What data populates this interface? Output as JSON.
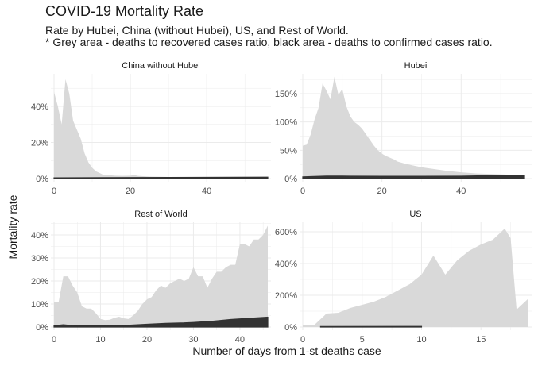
{
  "header": {
    "title": "COVID-19 Mortality Rate",
    "subtitle_line1": "Rate by Hubei, China (without Hubei), US, and Rest of World.",
    "subtitle_line2": "* Grey area - deaths to recovered cases ratio, black area - deaths to confirmed cases ratio."
  },
  "colors": {
    "recovered_area": "#d9d9d9",
    "confirmed_area": "#333333",
    "grid": "#ebebeb"
  },
  "chart_data": {
    "type": "area",
    "xlabel": "Number of days from 1-st deaths case",
    "ylabel": "Mortality rate",
    "facets": [
      {
        "name": "China without Hubei",
        "xlim": [
          0,
          56
        ],
        "ylim": [
          0,
          0.58
        ],
        "x_ticks": [
          0,
          20,
          40
        ],
        "y_ticks": [
          0,
          0.2,
          0.4
        ],
        "y_tick_labels": [
          "0%",
          "20%",
          "40%"
        ],
        "recovered": [
          [
            0,
            0.48
          ],
          [
            1,
            0.4
          ],
          [
            2,
            0.3
          ],
          [
            3,
            0.55
          ],
          [
            4,
            0.47
          ],
          [
            5,
            0.32
          ],
          [
            6,
            0.27
          ],
          [
            7,
            0.22
          ],
          [
            8,
            0.14
          ],
          [
            9,
            0.09
          ],
          [
            10,
            0.06
          ],
          [
            11,
            0.04
          ],
          [
            12,
            0.03
          ],
          [
            13,
            0.02
          ],
          [
            14,
            0.02
          ],
          [
            16,
            0.016
          ],
          [
            18,
            0.015
          ],
          [
            20,
            0.016
          ],
          [
            21,
            0.02
          ],
          [
            22,
            0.015
          ],
          [
            25,
            0.011
          ],
          [
            28,
            0.01
          ],
          [
            30,
            0.009
          ],
          [
            34,
            0.008
          ],
          [
            38,
            0.008
          ],
          [
            42,
            0.007
          ],
          [
            46,
            0.007
          ],
          [
            50,
            0.007
          ],
          [
            54,
            0.007
          ],
          [
            56,
            0.007
          ]
        ],
        "confirmed": [
          [
            0,
            0.004
          ],
          [
            56,
            0.008
          ]
        ]
      },
      {
        "name": "Hubei",
        "xlim": [
          0,
          57
        ],
        "ylim": [
          0,
          1.85
        ],
        "x_ticks": [
          0,
          20,
          40
        ],
        "y_ticks": [
          0,
          0.5,
          1.0,
          1.5
        ],
        "y_tick_labels": [
          "0%",
          "50%",
          "100%",
          "150%"
        ],
        "recovered": [
          [
            0,
            0.58
          ],
          [
            1,
            0.6
          ],
          [
            2,
            0.78
          ],
          [
            3,
            1.05
          ],
          [
            4,
            1.25
          ],
          [
            5,
            1.68
          ],
          [
            6,
            1.55
          ],
          [
            7,
            1.4
          ],
          [
            8,
            1.8
          ],
          [
            9,
            1.48
          ],
          [
            10,
            1.58
          ],
          [
            11,
            1.28
          ],
          [
            12,
            1.1
          ],
          [
            13,
            1.0
          ],
          [
            14,
            0.95
          ],
          [
            15,
            0.88
          ],
          [
            16,
            0.78
          ],
          [
            17,
            0.68
          ],
          [
            18,
            0.58
          ],
          [
            19,
            0.5
          ],
          [
            20,
            0.44
          ],
          [
            21,
            0.4
          ],
          [
            22,
            0.37
          ],
          [
            23,
            0.34
          ],
          [
            24,
            0.3
          ],
          [
            26,
            0.26
          ],
          [
            28,
            0.23
          ],
          [
            30,
            0.2
          ],
          [
            33,
            0.17
          ],
          [
            36,
            0.14
          ],
          [
            40,
            0.11
          ],
          [
            44,
            0.09
          ],
          [
            48,
            0.08
          ],
          [
            52,
            0.07
          ],
          [
            56,
            0.07
          ]
        ],
        "confirmed": [
          [
            0,
            0.03
          ],
          [
            2,
            0.035
          ],
          [
            6,
            0.045
          ],
          [
            10,
            0.045
          ],
          [
            12,
            0.042
          ],
          [
            20,
            0.04
          ],
          [
            30,
            0.04
          ],
          [
            40,
            0.042
          ],
          [
            44,
            0.048
          ],
          [
            56,
            0.05
          ]
        ]
      },
      {
        "name": "Rest of World",
        "xlim": [
          0,
          46
        ],
        "ylim": [
          0,
          0.455
        ],
        "x_ticks": [
          0,
          10,
          20,
          30,
          40
        ],
        "y_ticks": [
          0,
          0.1,
          0.2,
          0.3,
          0.4
        ],
        "y_tick_labels": [
          "0%",
          "10%",
          "20%",
          "30%",
          "40%"
        ],
        "recovered": [
          [
            0,
            0.11
          ],
          [
            1,
            0.11
          ],
          [
            2,
            0.22
          ],
          [
            3,
            0.22
          ],
          [
            4,
            0.18
          ],
          [
            5,
            0.15
          ],
          [
            6,
            0.09
          ],
          [
            7,
            0.08
          ],
          [
            8,
            0.08
          ],
          [
            9,
            0.06
          ],
          [
            10,
            0.035
          ],
          [
            11,
            0.03
          ],
          [
            12,
            0.032
          ],
          [
            13,
            0.04
          ],
          [
            14,
            0.045
          ],
          [
            15,
            0.038
          ],
          [
            16,
            0.035
          ],
          [
            17,
            0.05
          ],
          [
            18,
            0.07
          ],
          [
            19,
            0.1
          ],
          [
            20,
            0.12
          ],
          [
            21,
            0.13
          ],
          [
            22,
            0.16
          ],
          [
            23,
            0.18
          ],
          [
            24,
            0.17
          ],
          [
            25,
            0.19
          ],
          [
            26,
            0.2
          ],
          [
            27,
            0.21
          ],
          [
            28,
            0.2
          ],
          [
            29,
            0.21
          ],
          [
            30,
            0.26
          ],
          [
            31,
            0.22
          ],
          [
            32,
            0.22
          ],
          [
            33,
            0.17
          ],
          [
            34,
            0.21
          ],
          [
            35,
            0.24
          ],
          [
            36,
            0.24
          ],
          [
            37,
            0.26
          ],
          [
            38,
            0.27
          ],
          [
            39,
            0.27
          ],
          [
            40,
            0.36
          ],
          [
            41,
            0.36
          ],
          [
            42,
            0.35
          ],
          [
            43,
            0.38
          ],
          [
            44,
            0.38
          ],
          [
            45,
            0.4
          ],
          [
            46,
            0.44
          ]
        ],
        "confirmed": [
          [
            0,
            0.006
          ],
          [
            2,
            0.01
          ],
          [
            4,
            0.006
          ],
          [
            8,
            0.005
          ],
          [
            12,
            0.006
          ],
          [
            16,
            0.008
          ],
          [
            20,
            0.012
          ],
          [
            24,
            0.016
          ],
          [
            28,
            0.018
          ],
          [
            30,
            0.02
          ],
          [
            34,
            0.025
          ],
          [
            38,
            0.033
          ],
          [
            42,
            0.038
          ],
          [
            46,
            0.043
          ]
        ]
      },
      {
        "name": "US",
        "xlim": [
          0,
          19
        ],
        "ylim": [
          0,
          6.6
        ],
        "x_ticks": [
          0,
          5,
          10,
          15
        ],
        "y_ticks": [
          0,
          2,
          4,
          6
        ],
        "y_tick_labels": [
          "0%",
          "200%",
          "400%",
          "600%"
        ],
        "recovered": [
          [
            0,
            0.15
          ],
          [
            1,
            0.15
          ],
          [
            2,
            0.85
          ],
          [
            3,
            0.9
          ],
          [
            4,
            1.2
          ],
          [
            5,
            1.4
          ],
          [
            6,
            1.6
          ],
          [
            7,
            1.9
          ],
          [
            8,
            2.3
          ],
          [
            9,
            2.7
          ],
          [
            10,
            3.3
          ],
          [
            11,
            4.5
          ],
          [
            12,
            3.3
          ],
          [
            13,
            4.2
          ],
          [
            14,
            4.8
          ],
          [
            15,
            5.2
          ],
          [
            16,
            5.5
          ],
          [
            17,
            6.2
          ],
          [
            17.5,
            5.6
          ],
          [
            18,
            1.1
          ],
          [
            19,
            1.8
          ]
        ],
        "confirmed": [
          [
            1.5,
            0.03
          ],
          [
            10,
            0.04
          ]
        ]
      }
    ]
  }
}
